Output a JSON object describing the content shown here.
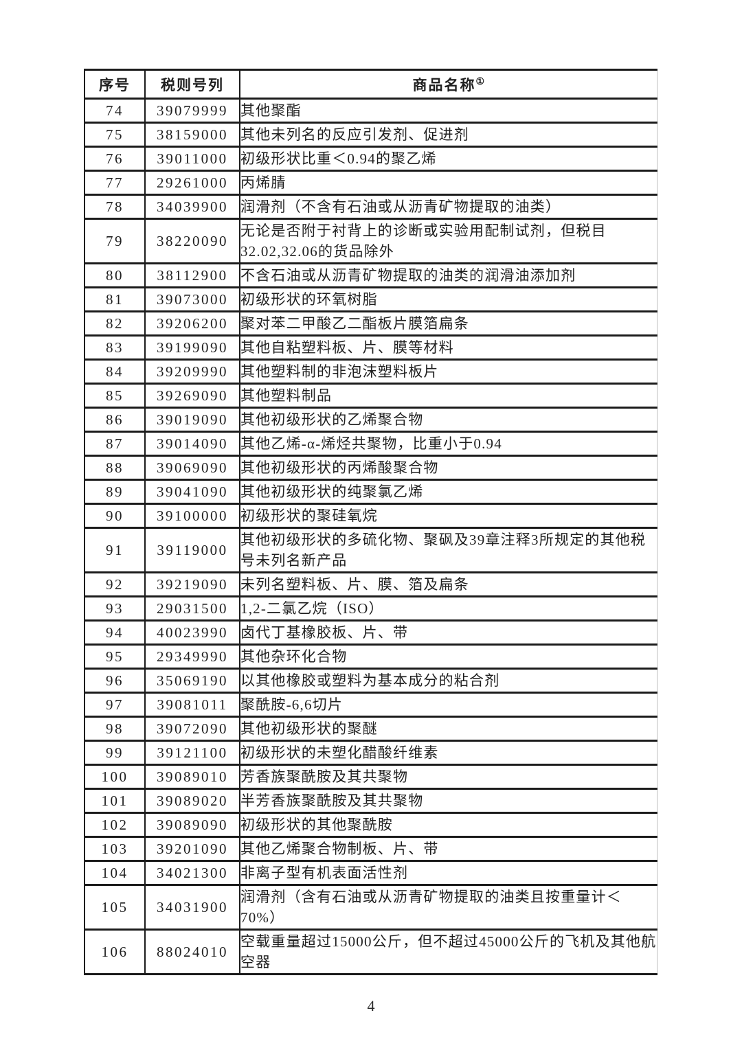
{
  "page": {
    "number": "4"
  },
  "colors": {
    "border": "#1b1b1b",
    "border_right_faint": "#bdbdbd",
    "text": "#1f1f1f",
    "background": "#ffffff"
  },
  "table": {
    "headers": {
      "index": "序号",
      "tariff_code": "税则号列",
      "product_name": "商品名称",
      "product_name_superscript": "①"
    },
    "rows": [
      {
        "index": "74",
        "code": "39079999",
        "name": "其他聚酯"
      },
      {
        "index": "75",
        "code": "38159000",
        "name": "其他未列名的反应引发剂、促进剂"
      },
      {
        "index": "76",
        "code": "39011000",
        "name": "初级形状比重＜0.94的聚乙烯"
      },
      {
        "index": "77",
        "code": "29261000",
        "name": "丙烯腈"
      },
      {
        "index": "78",
        "code": "34039900",
        "name": "润滑剂（不含有石油或从沥青矿物提取的油类）"
      },
      {
        "index": "79",
        "code": "38220090",
        "name": "无论是否附于衬背上的诊断或实验用配制试剂，但税目\n32.02,32.06的货品除外"
      },
      {
        "index": "80",
        "code": "38112900",
        "name": "不含石油或从沥青矿物提取的油类的润滑油添加剂"
      },
      {
        "index": "81",
        "code": "39073000",
        "name": "初级形状的环氧树脂"
      },
      {
        "index": "82",
        "code": "39206200",
        "name": "聚对苯二甲酸乙二酯板片膜箔扁条"
      },
      {
        "index": "83",
        "code": "39199090",
        "name": "其他自粘塑料板、片、膜等材料"
      },
      {
        "index": "84",
        "code": "39209990",
        "name": "其他塑料制的非泡沫塑料板片"
      },
      {
        "index": "85",
        "code": "39269090",
        "name": "其他塑料制品"
      },
      {
        "index": "86",
        "code": "39019090",
        "name": "其他初级形状的乙烯聚合物"
      },
      {
        "index": "87",
        "code": "39014090",
        "name": "其他乙烯-α-烯烃共聚物，比重小于0.94"
      },
      {
        "index": "88",
        "code": "39069090",
        "name": "其他初级形状的丙烯酸聚合物"
      },
      {
        "index": "89",
        "code": "39041090",
        "name": "其他初级形状的纯聚氯乙烯"
      },
      {
        "index": "90",
        "code": "39100000",
        "name": "初级形状的聚硅氧烷"
      },
      {
        "index": "91",
        "code": "39119000",
        "name": "其他初级形状的多硫化物、聚砜及39章注释3所规定的其他税\n号未列名新产品"
      },
      {
        "index": "92",
        "code": "39219090",
        "name": "未列名塑料板、片、膜、箔及扁条"
      },
      {
        "index": "93",
        "code": "29031500",
        "name": "1,2-二氯乙烷（ISO）"
      },
      {
        "index": "94",
        "code": "40023990",
        "name": "卤代丁基橡胶板、片、带"
      },
      {
        "index": "95",
        "code": "29349990",
        "name": "其他杂环化合物"
      },
      {
        "index": "96",
        "code": "35069190",
        "name": "以其他橡胶或塑料为基本成分的粘合剂"
      },
      {
        "index": "97",
        "code": "39081011",
        "name": "聚酰胺-6,6切片"
      },
      {
        "index": "98",
        "code": "39072090",
        "name": "其他初级形状的聚醚"
      },
      {
        "index": "99",
        "code": "39121100",
        "name": "初级形状的未塑化醋酸纤维素"
      },
      {
        "index": "100",
        "code": "39089010",
        "name": "芳香族聚酰胺及其共聚物"
      },
      {
        "index": "101",
        "code": "39089020",
        "name": "半芳香族聚酰胺及其共聚物"
      },
      {
        "index": "102",
        "code": "39089090",
        "name": "初级形状的其他聚酰胺"
      },
      {
        "index": "103",
        "code": "39201090",
        "name": "其他乙烯聚合物制板、片、带"
      },
      {
        "index": "104",
        "code": "34021300",
        "name": "非离子型有机表面活性剂"
      },
      {
        "index": "105",
        "code": "34031900",
        "name": "润滑剂（含有石油或从沥青矿物提取的油类且按重量计＜\n70%）"
      },
      {
        "index": "106",
        "code": "88024010",
        "name": "空载重量超过15000公斤，但不超过45000公斤的飞机及其他航\n空器"
      }
    ]
  }
}
